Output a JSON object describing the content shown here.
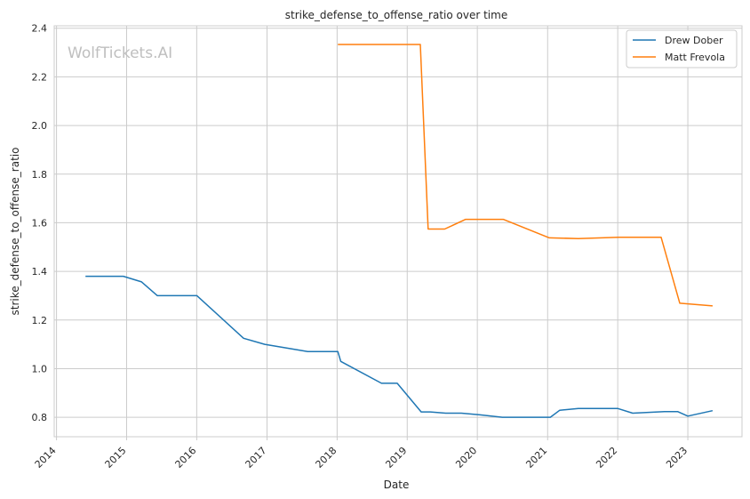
{
  "chart_data": {
    "type": "line",
    "title": "strike_defense_to_offense_ratio over time",
    "xlabel": "Date",
    "ylabel": "strike_defense_to_offense_ratio",
    "watermark": "WolfTickets.AI",
    "xlim": [
      "2013-12-20",
      "2023-10-10"
    ],
    "ylim": [
      0.72,
      2.41
    ],
    "xticks": [
      "2014",
      "2015",
      "2016",
      "2017",
      "2018",
      "2019",
      "2020",
      "2021",
      "2022",
      "2023"
    ],
    "yticks": [
      "0.8",
      "1.0",
      "1.2",
      "1.4",
      "1.6",
      "1.8",
      "2.0",
      "2.2",
      "2.4"
    ],
    "grid": true,
    "legend_position": "top-right",
    "series": [
      {
        "name": "Drew Dober",
        "color": "#1f77b4",
        "points": [
          [
            "2014-06-01",
            1.38
          ],
          [
            "2014-12-15",
            1.38
          ],
          [
            "2015-03-20",
            1.357
          ],
          [
            "2015-06-10",
            1.3
          ],
          [
            "2016-01-02",
            1.3
          ],
          [
            "2016-09-01",
            1.125
          ],
          [
            "2016-12-20",
            1.1
          ],
          [
            "2017-08-01",
            1.07
          ],
          [
            "2018-01-05",
            1.07
          ],
          [
            "2018-01-20",
            1.03
          ],
          [
            "2018-08-20",
            0.94
          ],
          [
            "2018-11-10",
            0.94
          ],
          [
            "2019-03-15",
            0.822
          ],
          [
            "2019-05-01",
            0.822
          ],
          [
            "2019-07-20",
            0.817
          ],
          [
            "2019-10-10",
            0.817
          ],
          [
            "2020-01-15",
            0.81
          ],
          [
            "2020-05-10",
            0.8
          ],
          [
            "2021-01-15",
            0.8
          ],
          [
            "2021-03-05",
            0.829
          ],
          [
            "2021-06-10",
            0.836
          ],
          [
            "2022-01-02",
            0.836
          ],
          [
            "2022-03-20",
            0.817
          ],
          [
            "2022-09-01",
            0.823
          ],
          [
            "2022-11-10",
            0.823
          ],
          [
            "2023-01-01",
            0.805
          ],
          [
            "2023-05-10",
            0.827
          ]
        ]
      },
      {
        "name": "Matt Frevola",
        "color": "#ff7f0e",
        "points": [
          [
            "2018-01-05",
            2.333
          ],
          [
            "2019-03-10",
            2.333
          ],
          [
            "2019-04-20",
            1.574
          ],
          [
            "2019-07-15",
            1.574
          ],
          [
            "2019-11-01",
            1.614
          ],
          [
            "2020-05-15",
            1.614
          ],
          [
            "2021-01-10",
            1.538
          ],
          [
            "2021-06-10",
            1.535
          ],
          [
            "2022-01-05",
            1.54
          ],
          [
            "2022-08-15",
            1.54
          ],
          [
            "2022-11-20",
            1.269
          ],
          [
            "2023-05-10",
            1.258
          ]
        ]
      }
    ]
  }
}
